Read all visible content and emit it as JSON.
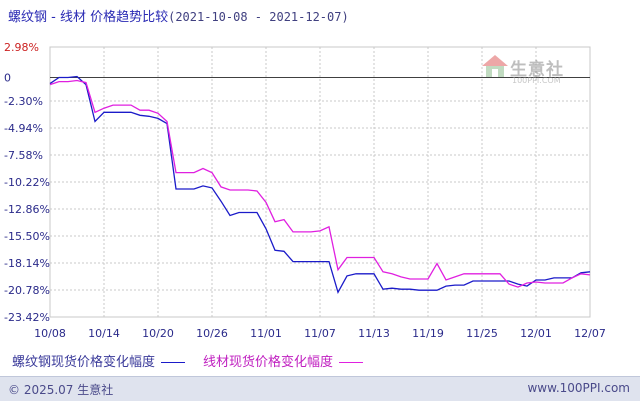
{
  "title": {
    "main": "螺纹钢 - 线材 价格趋势比较",
    "range": "(2021-10-08 - 2021-12-07)"
  },
  "watermark": {
    "name": "生意社",
    "url": "100PPI.COM"
  },
  "footer": {
    "copyright": "© 2025.07 生意社",
    "site": "www.100PPI.com"
  },
  "colors": {
    "rebar": "#1b1bc9",
    "wire": "#e020e0",
    "grid": "#c8c8c8",
    "axis": "#404040",
    "label": "#2a2a8a"
  },
  "chart_data": {
    "type": "line",
    "ylim": [
      -23.42,
      2.98
    ],
    "yticks": [
      2.98,
      0,
      -2.3,
      -4.94,
      -7.58,
      -10.22,
      -12.86,
      -15.5,
      -18.14,
      -20.78,
      -23.42
    ],
    "ytick_labels": [
      "2.98%",
      "0",
      "-2.30%",
      "-4.94%",
      "-7.58%",
      "-10.22%",
      "-12.86%",
      "-15.50%",
      "-18.14%",
      "-20.78%",
      "-23.42%"
    ],
    "xticks": [
      "10/08",
      "10/14",
      "10/20",
      "10/26",
      "11/01",
      "11/07",
      "11/13",
      "11/19",
      "11/25",
      "12/01",
      "12/07"
    ],
    "x_days": 60,
    "series": [
      {
        "name": "螺纹钢现货价格变化幅度",
        "color": "#1b1bc9",
        "points": [
          [
            0,
            -0.6
          ],
          [
            1,
            0
          ],
          [
            2,
            0
          ],
          [
            3,
            0.1
          ],
          [
            4,
            -0.7
          ],
          [
            5,
            -4.3
          ],
          [
            6,
            -3.4
          ],
          [
            7,
            -3.4
          ],
          [
            8,
            -3.4
          ],
          [
            9,
            -3.4
          ],
          [
            10,
            -3.7
          ],
          [
            11,
            -3.8
          ],
          [
            12,
            -4.0
          ],
          [
            13,
            -4.5
          ],
          [
            14,
            -10.9
          ],
          [
            15,
            -10.9
          ],
          [
            16,
            -10.9
          ],
          [
            17,
            -10.6
          ],
          [
            18,
            -10.8
          ],
          [
            19,
            -12.1
          ],
          [
            20,
            -13.5
          ],
          [
            21,
            -13.2
          ],
          [
            22,
            -13.2
          ],
          [
            23,
            -13.2
          ],
          [
            24,
            -14.8
          ],
          [
            25,
            -16.9
          ],
          [
            26,
            -17.0
          ],
          [
            27,
            -18.0
          ],
          [
            28,
            -18.0
          ],
          [
            29,
            -18.0
          ],
          [
            30,
            -18.0
          ],
          [
            31,
            -18.0
          ],
          [
            32,
            -21.0
          ],
          [
            33,
            -19.4
          ],
          [
            34,
            -19.2
          ],
          [
            35,
            -19.2
          ],
          [
            36,
            -19.2
          ],
          [
            37,
            -20.7
          ],
          [
            38,
            -20.6
          ],
          [
            39,
            -20.7
          ],
          [
            40,
            -20.7
          ],
          [
            41,
            -20.8
          ],
          [
            42,
            -20.8
          ],
          [
            43,
            -20.8
          ],
          [
            44,
            -20.4
          ],
          [
            45,
            -20.3
          ],
          [
            46,
            -20.3
          ],
          [
            47,
            -19.9
          ],
          [
            48,
            -19.9
          ],
          [
            49,
            -19.9
          ],
          [
            50,
            -19.9
          ],
          [
            51,
            -19.9
          ],
          [
            52,
            -20.2
          ],
          [
            53,
            -20.4
          ],
          [
            54,
            -19.8
          ],
          [
            55,
            -19.8
          ],
          [
            56,
            -19.6
          ],
          [
            57,
            -19.6
          ],
          [
            58,
            -19.6
          ],
          [
            59,
            -19.1
          ],
          [
            60,
            -19.0
          ]
        ]
      },
      {
        "name": "线材现货价格变化幅度",
        "color": "#e020e0",
        "points": [
          [
            0,
            -0.7
          ],
          [
            1,
            -0.4
          ],
          [
            2,
            -0.4
          ],
          [
            3,
            -0.3
          ],
          [
            4,
            -0.5
          ],
          [
            5,
            -3.4
          ],
          [
            6,
            -3.0
          ],
          [
            7,
            -2.7
          ],
          [
            8,
            -2.7
          ],
          [
            9,
            -2.7
          ],
          [
            10,
            -3.2
          ],
          [
            11,
            -3.2
          ],
          [
            12,
            -3.5
          ],
          [
            13,
            -4.3
          ],
          [
            14,
            -9.3
          ],
          [
            15,
            -9.3
          ],
          [
            16,
            -9.3
          ],
          [
            17,
            -8.9
          ],
          [
            18,
            -9.3
          ],
          [
            19,
            -10.7
          ],
          [
            20,
            -11.0
          ],
          [
            21,
            -11.0
          ],
          [
            22,
            -11.0
          ],
          [
            23,
            -11.1
          ],
          [
            24,
            -12.2
          ],
          [
            25,
            -14.1
          ],
          [
            26,
            -13.9
          ],
          [
            27,
            -15.1
          ],
          [
            28,
            -15.1
          ],
          [
            29,
            -15.1
          ],
          [
            30,
            -15.0
          ],
          [
            31,
            -14.6
          ],
          [
            32,
            -18.8
          ],
          [
            33,
            -17.6
          ],
          [
            34,
            -17.6
          ],
          [
            35,
            -17.6
          ],
          [
            36,
            -17.6
          ],
          [
            37,
            -19.0
          ],
          [
            38,
            -19.2
          ],
          [
            39,
            -19.5
          ],
          [
            40,
            -19.7
          ],
          [
            41,
            -19.7
          ],
          [
            42,
            -19.7
          ],
          [
            43,
            -18.2
          ],
          [
            44,
            -19.8
          ],
          [
            45,
            -19.5
          ],
          [
            46,
            -19.2
          ],
          [
            47,
            -19.2
          ],
          [
            48,
            -19.2
          ],
          [
            49,
            -19.2
          ],
          [
            50,
            -19.2
          ],
          [
            51,
            -20.2
          ],
          [
            52,
            -20.5
          ],
          [
            53,
            -20.1
          ],
          [
            54,
            -20.0
          ],
          [
            55,
            -20.1
          ],
          [
            56,
            -20.1
          ],
          [
            57,
            -20.1
          ],
          [
            58,
            -19.6
          ],
          [
            59,
            -19.2
          ],
          [
            60,
            -19.3
          ]
        ]
      }
    ]
  }
}
